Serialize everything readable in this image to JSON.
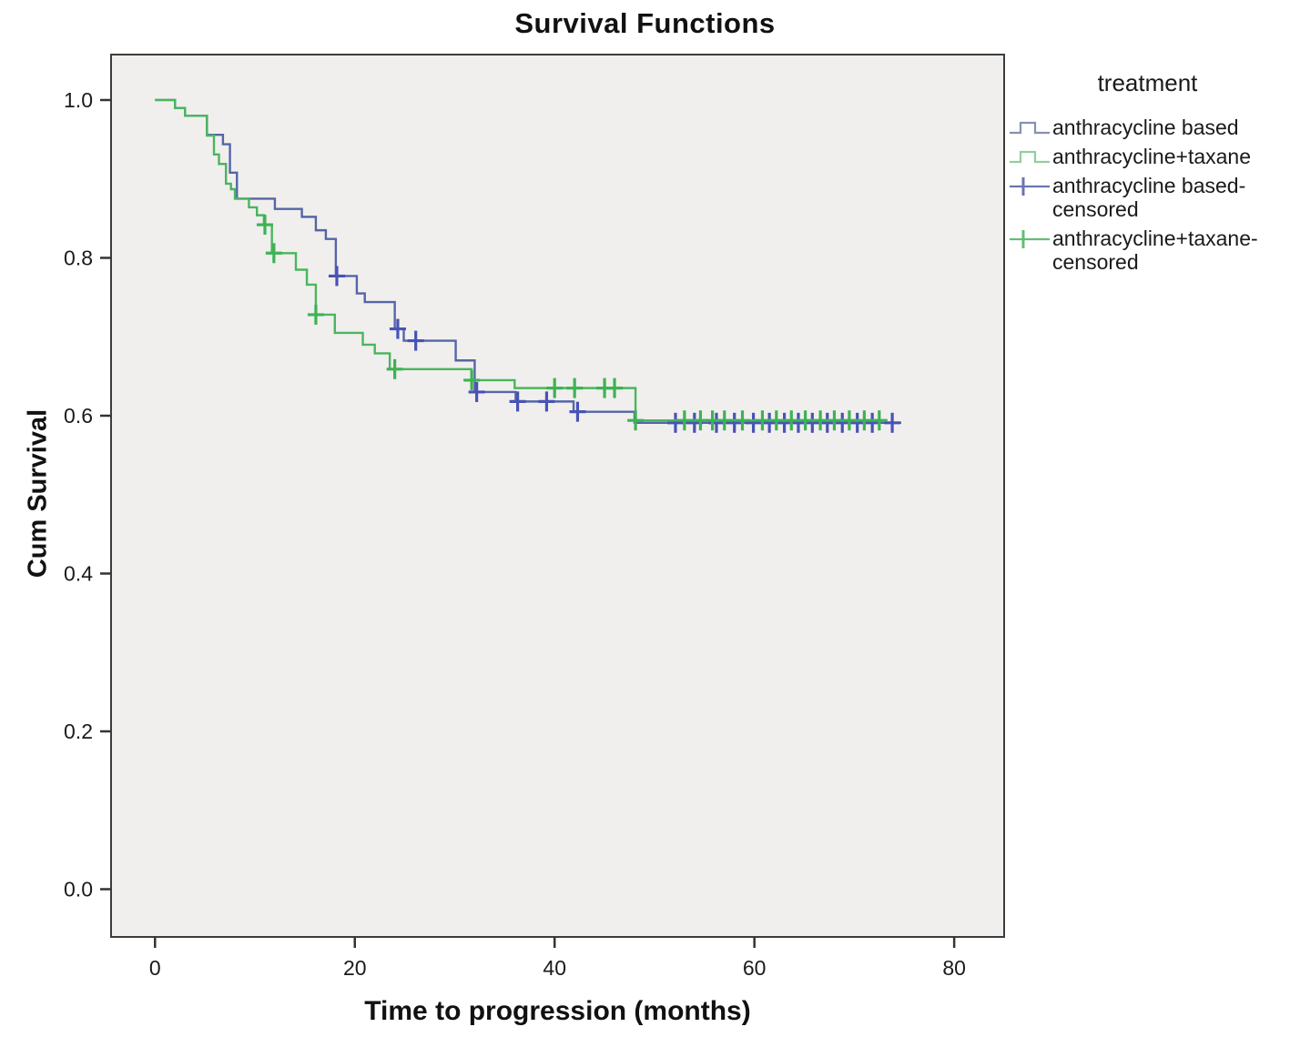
{
  "title": "Survival Functions",
  "axes": {
    "x_title": "Time to progression (months)",
    "y_title": "Cum Survival",
    "x_tick_labels": [
      "0",
      "20",
      "40",
      "60",
      "80"
    ],
    "y_tick_labels": [
      "1.0",
      "0.8",
      "0.6",
      "0.4",
      "0.2",
      "0.0"
    ]
  },
  "legend": {
    "title": "treatment",
    "items": [
      {
        "label": "anthracycline based",
        "swatch": "step",
        "color": "#8690b2"
      },
      {
        "label": "anthracycline+taxane",
        "swatch": "step",
        "color": "#94cd9e"
      },
      {
        "label": "anthracycline based-censored",
        "swatch": "censored",
        "color": "#6a74b0"
      },
      {
        "label": "anthracycline+taxane-censored",
        "swatch": "censored",
        "color": "#63bd74"
      }
    ]
  },
  "colors": {
    "plot_background": "#f0efed",
    "plot_border": "#3c3c3c",
    "tick": "#333333",
    "blue_series": "#5565a8",
    "blue_censor": "#4753b5",
    "green_series": "#4ab55e",
    "green_censor": "#3eb254"
  },
  "chart_data": {
    "type": "line",
    "subtype": "kaplan-meier-step",
    "title": "Survival Functions",
    "xlabel": "Time to progression (months)",
    "ylabel": "Cum Survival",
    "legend_title": "treatment",
    "legend_position": "right",
    "grid": false,
    "xlim": [
      -4.4,
      85.0
    ],
    "ylim": [
      -0.0605,
      1.0576
    ],
    "x_ticks": [
      0,
      20,
      40,
      60,
      80
    ],
    "y_ticks": [
      1.0,
      0.8,
      0.6,
      0.4,
      0.2,
      0.0
    ],
    "series": [
      {
        "name": "anthracycline based",
        "color": "#5565a8",
        "censor_color": "#4753b5",
        "end_x": 74.7,
        "steps": [
          [
            0,
            1.0
          ],
          [
            2,
            0.99
          ],
          [
            3,
            0.98
          ],
          [
            5.2,
            0.956
          ],
          [
            6.8,
            0.944
          ],
          [
            7.5,
            0.908
          ],
          [
            8.2,
            0.875
          ],
          [
            12,
            0.862
          ],
          [
            14.7,
            0.852
          ],
          [
            16.1,
            0.835
          ],
          [
            17.1,
            0.824
          ],
          [
            18.1,
            0.777
          ],
          [
            20.2,
            0.755
          ],
          [
            21,
            0.744
          ],
          [
            24,
            0.71
          ],
          [
            24.9,
            0.695
          ],
          [
            30.1,
            0.67
          ],
          [
            32,
            0.63
          ],
          [
            36.1,
            0.618
          ],
          [
            41.9,
            0.605
          ],
          [
            48,
            0.591
          ]
        ],
        "censored": [
          [
            18.2,
            0.777
          ],
          [
            24.3,
            0.71
          ],
          [
            26.1,
            0.695
          ],
          [
            32.2,
            0.63
          ],
          [
            36.3,
            0.618
          ],
          [
            39.2,
            0.618
          ],
          [
            42.3,
            0.605
          ],
          [
            52.1,
            0.591
          ],
          [
            54.0,
            0.591
          ],
          [
            56.2,
            0.591
          ],
          [
            58.0,
            0.591
          ],
          [
            59.9,
            0.591
          ],
          [
            61.5,
            0.591
          ],
          [
            63.0,
            0.591
          ],
          [
            64.4,
            0.591
          ],
          [
            65.8,
            0.591
          ],
          [
            67.3,
            0.591
          ],
          [
            68.8,
            0.591
          ],
          [
            70.3,
            0.591
          ],
          [
            71.8,
            0.591
          ],
          [
            73.8,
            0.591
          ]
        ]
      },
      {
        "name": "anthracycline+taxane",
        "color": "#4ab55e",
        "censor_color": "#3eb254",
        "end_x": 72.7,
        "steps": [
          [
            0,
            1.0
          ],
          [
            2,
            0.99
          ],
          [
            3,
            0.98
          ],
          [
            5.2,
            0.955
          ],
          [
            5.9,
            0.931
          ],
          [
            6.4,
            0.919
          ],
          [
            7.1,
            0.894
          ],
          [
            7.6,
            0.887
          ],
          [
            8,
            0.875
          ],
          [
            9.4,
            0.864
          ],
          [
            10.2,
            0.854
          ],
          [
            10.9,
            0.842
          ],
          [
            11.7,
            0.806
          ],
          [
            14.1,
            0.785
          ],
          [
            15.2,
            0.766
          ],
          [
            16.1,
            0.728
          ],
          [
            18,
            0.705
          ],
          [
            20.8,
            0.69
          ],
          [
            22,
            0.679
          ],
          [
            23.5,
            0.659
          ],
          [
            31.7,
            0.645
          ],
          [
            36,
            0.635
          ],
          [
            48.1,
            0.594
          ]
        ],
        "censored": [
          [
            11.0,
            0.842
          ],
          [
            11.9,
            0.806
          ],
          [
            16.1,
            0.728
          ],
          [
            24.0,
            0.659
          ],
          [
            31.7,
            0.645
          ],
          [
            40.0,
            0.635
          ],
          [
            42.0,
            0.635
          ],
          [
            45.0,
            0.635
          ],
          [
            46.0,
            0.635
          ],
          [
            48.1,
            0.594
          ],
          [
            53.0,
            0.594
          ],
          [
            54.6,
            0.594
          ],
          [
            55.8,
            0.594
          ],
          [
            57.0,
            0.594
          ],
          [
            58.8,
            0.594
          ],
          [
            60.8,
            0.594
          ],
          [
            62.2,
            0.594
          ],
          [
            63.7,
            0.594
          ],
          [
            65.1,
            0.594
          ],
          [
            66.6,
            0.594
          ],
          [
            68.0,
            0.594
          ],
          [
            69.5,
            0.594
          ],
          [
            71.0,
            0.594
          ],
          [
            72.5,
            0.594
          ]
        ]
      }
    ]
  }
}
